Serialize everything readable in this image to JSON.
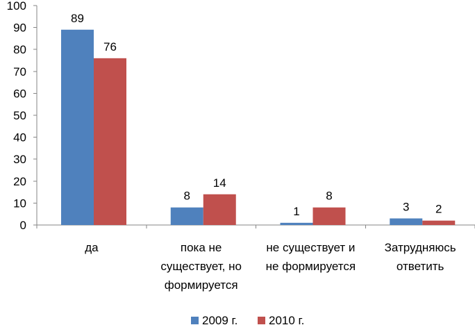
{
  "chart_data": {
    "type": "bar",
    "title": "",
    "xlabel": "",
    "ylabel": "",
    "ylim": [
      0,
      100
    ],
    "yticks": [
      0,
      10,
      20,
      30,
      40,
      50,
      60,
      70,
      80,
      90,
      100
    ],
    "grid": false,
    "legend_position": "bottom",
    "categories": [
      [
        "да"
      ],
      [
        "пока не",
        "существует, но",
        "формируется"
      ],
      [
        "не существует и",
        "не формируется"
      ],
      [
        "Затрудняюсь",
        "ответить"
      ]
    ],
    "series": [
      {
        "name": "2009 г.",
        "color": "#4F81BD",
        "values": [
          89,
          8,
          1,
          3
        ]
      },
      {
        "name": "2010 г.",
        "color": "#C0504D",
        "values": [
          76,
          14,
          8,
          2
        ]
      }
    ]
  }
}
